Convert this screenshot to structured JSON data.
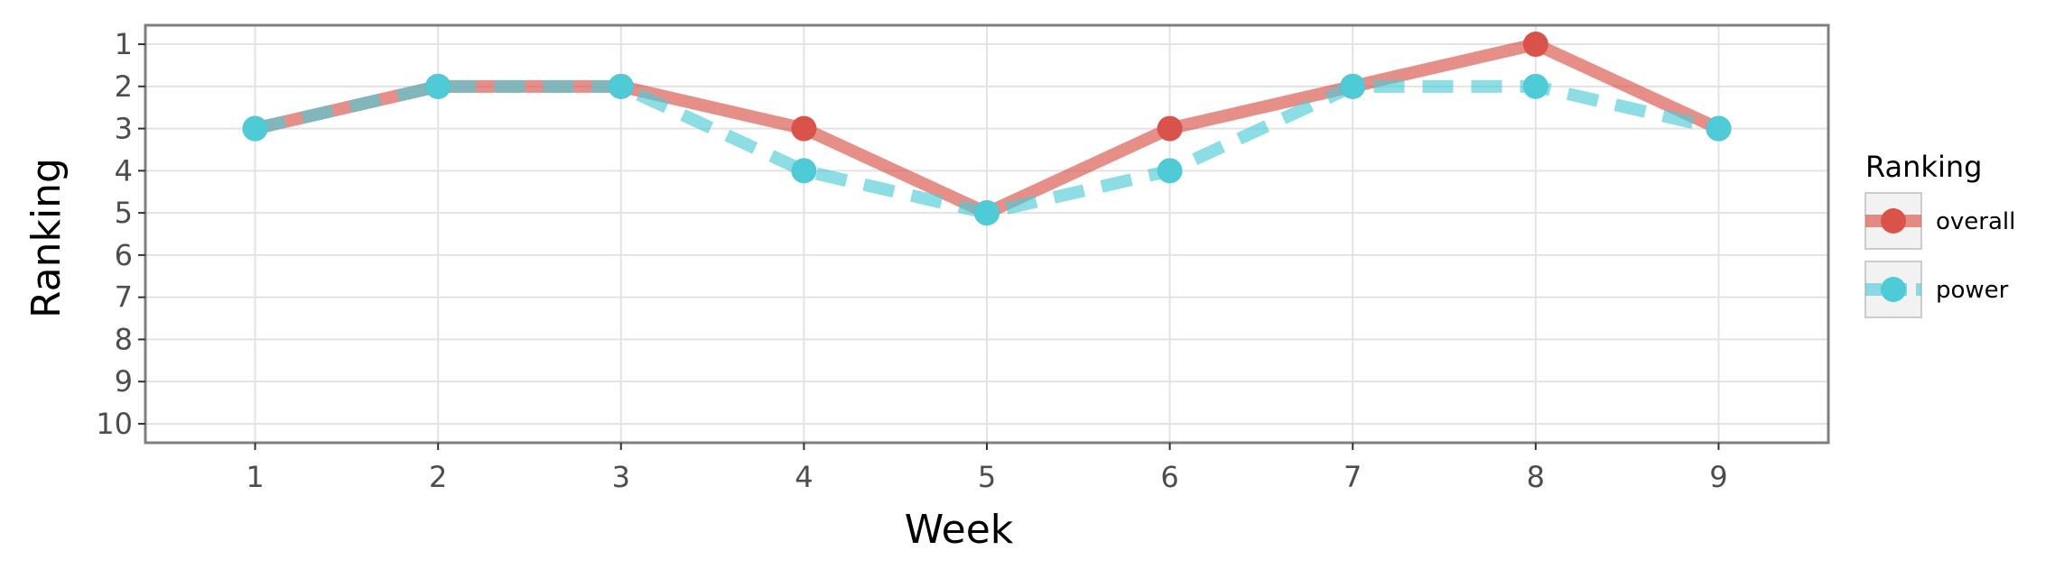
{
  "chart_data": {
    "type": "line",
    "xlabel": "Week",
    "ylabel": "Ranking",
    "x": [
      1,
      2,
      3,
      4,
      5,
      6,
      7,
      8,
      9
    ],
    "xticks": [
      "1",
      "2",
      "3",
      "4",
      "5",
      "6",
      "7",
      "8",
      "9"
    ],
    "yticks": [
      "1",
      "2",
      "3",
      "4",
      "5",
      "6",
      "7",
      "8",
      "9",
      "10"
    ],
    "xlim": [
      0.4,
      9.6
    ],
    "ylim": [
      10.45,
      0.55
    ],
    "y_axis_reversed": true,
    "grid": true,
    "legend": {
      "title": "Ranking",
      "placement": "right"
    },
    "series": [
      {
        "name": "overall",
        "values": [
          3,
          2,
          2,
          3,
          5,
          3,
          2,
          1,
          3
        ],
        "color": "#d9534a",
        "line_style": "solid"
      },
      {
        "name": "power",
        "values": [
          3,
          2,
          2,
          4,
          5,
          4,
          2,
          2,
          3
        ],
        "color": "#4ecbd6",
        "line_style": "dashed"
      }
    ]
  }
}
